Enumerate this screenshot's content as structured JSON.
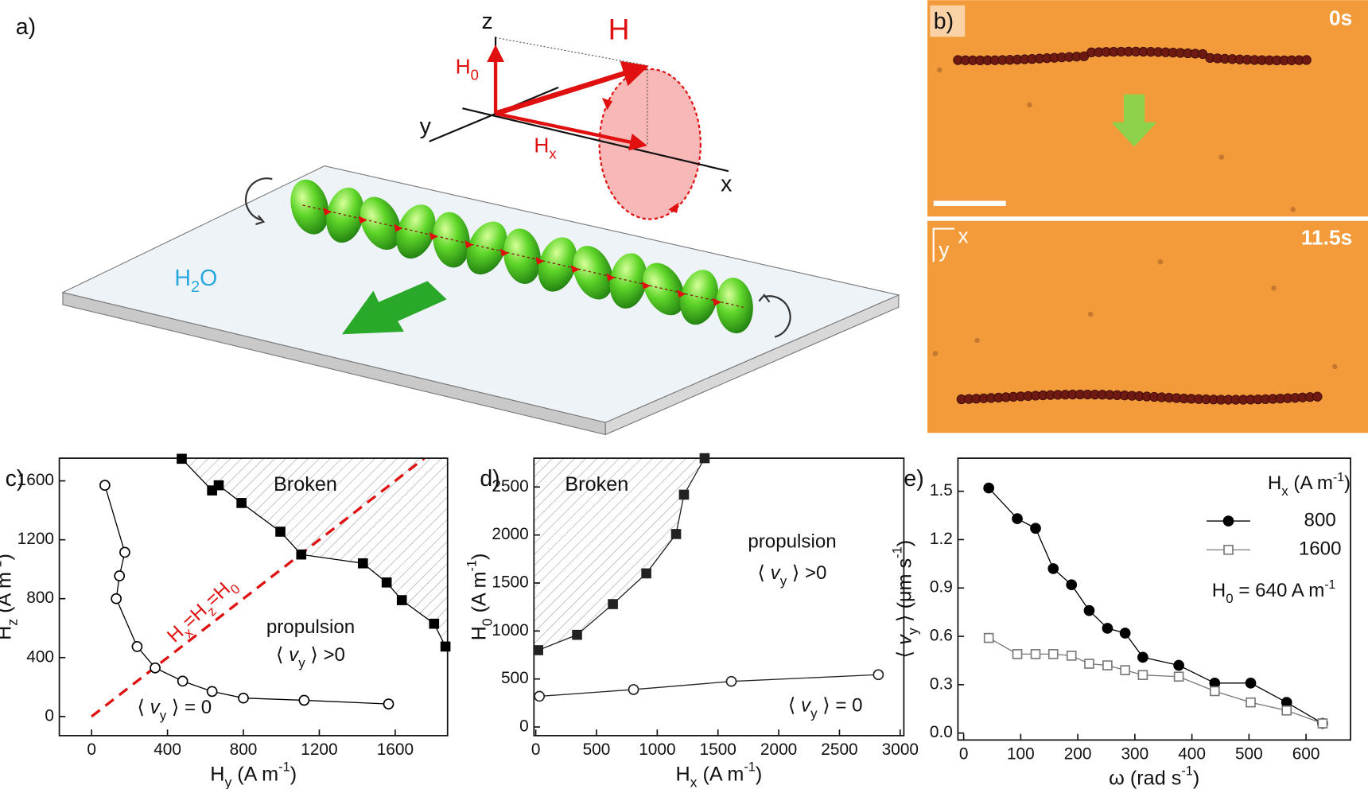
{
  "panel_a": {
    "label": "a)",
    "axis_z": "z",
    "axis_y": "y",
    "axis_x": "x",
    "field": "H",
    "h0": [
      {
        "t": "H"
      },
      {
        "t": "0",
        "sub": true
      }
    ],
    "hx": [
      {
        "t": "H"
      },
      {
        "t": "x",
        "sub": true
      }
    ],
    "water": [
      {
        "t": "H"
      },
      {
        "t": "2",
        "sub": true
      },
      {
        "t": "O"
      }
    ]
  },
  "panel_b": {
    "label": "b)",
    "time_top": "0s",
    "time_bottom": "11.5s",
    "axis_y": "y",
    "axis_x": "x"
  },
  "chart_data": [
    {
      "type": "line",
      "panel_label": "c)",
      "x_label": [
        {
          "t": "H"
        },
        {
          "t": "y",
          "sub": true
        },
        {
          "t": " (A m"
        },
        {
          "t": "-1",
          "sup": true
        },
        {
          "t": ")"
        }
      ],
      "y_label": [
        {
          "t": "H"
        },
        {
          "t": "z",
          "sub": true
        },
        {
          "t": " (A m"
        },
        {
          "t": "-1",
          "sup": true
        },
        {
          "t": ")"
        }
      ],
      "xlim": [
        -170,
        1876
      ],
      "ylim": [
        -130,
        1754
      ],
      "xticks": [
        0,
        400,
        800,
        1200,
        1600
      ],
      "yticks": [
        0,
        400,
        800,
        1200,
        1600
      ],
      "series": [
        {
          "color": "#000000",
          "marker": "circle",
          "filled": false,
          "x": [
            70,
            175,
            147,
            130,
            240,
            335,
            480,
            635,
            800,
            1120,
            1565
          ],
          "values": [
            1570,
            1115,
            955,
            800,
            475,
            330,
            240,
            170,
            125,
            110,
            85
          ]
        },
        {
          "color": "#000000",
          "marker": "square",
          "filled": true,
          "x": [
            475,
            635,
            670,
            790,
            995,
            1105,
            1430,
            1555,
            1635,
            1805,
            1865
          ],
          "values": [
            1750,
            1535,
            1570,
            1450,
            1255,
            1100,
            1040,
            910,
            790,
            630,
            475
          ]
        }
      ],
      "annotations": [
        [
          {
            "t": "Broken"
          }
        ],
        [
          {
            "t": "propulsion"
          }
        ],
        [
          {
            "t": "⟨ "
          },
          {
            "t": "v",
            "italic": true
          },
          {
            "t": "y",
            "sub": true
          },
          {
            "t": " ⟩ >0"
          }
        ],
        [
          {
            "t": "⟨ "
          },
          {
            "t": "v",
            "italic": true
          },
          {
            "t": "y",
            "sub": true
          },
          {
            "t": " ⟩ = 0"
          }
        ],
        [
          {
            "t": "H"
          },
          {
            "t": "x",
            "sub": true
          },
          {
            "t": "=H"
          },
          {
            "t": "z",
            "sub": true
          },
          {
            "t": "=H"
          },
          {
            "t": "0",
            "sub": true
          }
        ]
      ]
    },
    {
      "type": "line",
      "panel_label": "d)",
      "x_label": [
        {
          "t": "H"
        },
        {
          "t": "x",
          "sub": true
        },
        {
          "t": " (A m"
        },
        {
          "t": "-1",
          "sup": true
        },
        {
          "t": ")"
        }
      ],
      "y_label": [
        {
          "t": "H"
        },
        {
          "t": "0",
          "sub": true
        },
        {
          "t": " (A m"
        },
        {
          "t": "-1",
          "sup": true
        },
        {
          "t": ")"
        }
      ],
      "xlim": [
        -15,
        3030
      ],
      "ylim": [
        -90,
        2800
      ],
      "xticks": [
        0,
        500,
        1000,
        1500,
        2000,
        2500,
        3000
      ],
      "yticks": [
        0,
        500,
        1000,
        1500,
        2000,
        2500
      ],
      "series": [
        {
          "color": "#222222",
          "marker": "square",
          "filled": true,
          "x": [
            20,
            340,
            635,
            910,
            1155,
            1220,
            1390
          ],
          "values": [
            800,
            960,
            1280,
            1600,
            2010,
            2420,
            2800
          ]
        },
        {
          "color": "#222222",
          "marker": "circle",
          "filled": false,
          "x": [
            30,
            805,
            1610,
            2820
          ],
          "values": [
            320,
            390,
            475,
            545
          ]
        }
      ],
      "annotations": [
        [
          {
            "t": "Broken"
          }
        ],
        [
          {
            "t": "propulsion"
          }
        ],
        [
          {
            "t": "⟨ "
          },
          {
            "t": "v",
            "italic": true
          },
          {
            "t": "y",
            "sub": true
          },
          {
            "t": " ⟩ >0"
          }
        ],
        [
          {
            "t": "⟨ "
          },
          {
            "t": "v",
            "italic": true
          },
          {
            "t": "y",
            "sub": true
          },
          {
            "t": " ⟩ = 0"
          }
        ]
      ]
    },
    {
      "type": "line",
      "panel_label": "e)",
      "x_label": [
        {
          "t": "ω (rad s"
        },
        {
          "t": "-1",
          "sup": true
        },
        {
          "t": ")"
        }
      ],
      "y_label": [
        {
          "t": "⟨ "
        },
        {
          "t": "v",
          "italic": true
        },
        {
          "t": "y",
          "sub": true
        },
        {
          "t": " ⟩ (μm s"
        },
        {
          "t": "-1",
          "sup": true
        },
        {
          "t": ")"
        }
      ],
      "xlim": [
        -10,
        678
      ],
      "ylim": [
        -0.043,
        1.705
      ],
      "xticks": [
        0,
        100,
        200,
        300,
        400,
        500,
        600
      ],
      "yticks": [
        {
          "value": 0,
          "label": "0.0"
        },
        0.3,
        0.6,
        0.9,
        1.2,
        1.5
      ],
      "legend_title": [
        {
          "t": "H"
        },
        {
          "t": "x",
          "sub": true
        },
        {
          "t": " (A m"
        },
        {
          "t": "-1",
          "sup": true
        },
        {
          "t": ")"
        }
      ],
      "legend": "top-right",
      "series": [
        {
          "name": "800",
          "color": "#000000",
          "marker": "circle",
          "filled": true,
          "x": [
            44,
            94,
            126,
            157,
            189,
            220,
            252,
            283,
            314,
            377,
            440,
            503,
            566,
            629
          ],
          "values": [
            1.52,
            1.33,
            1.27,
            1.02,
            0.92,
            0.76,
            0.65,
            0.62,
            0.47,
            0.42,
            0.31,
            0.31,
            0.19,
            0.06
          ]
        },
        {
          "name": "1600",
          "color": "#777777",
          "marker": "square",
          "filled": false,
          "x": [
            44,
            94,
            126,
            157,
            189,
            220,
            252,
            283,
            314,
            377,
            440,
            503,
            566,
            629
          ],
          "values": [
            0.59,
            0.49,
            0.49,
            0.49,
            0.48,
            0.43,
            0.42,
            0.39,
            0.36,
            0.35,
            0.26,
            0.19,
            0.14,
            0.06
          ]
        }
      ],
      "annotations": [
        [
          {
            "t": "H"
          },
          {
            "t": "0",
            "sub": true
          },
          {
            "t": " = 640 A m"
          },
          {
            "t": "-1",
            "sup": true
          }
        ]
      ]
    }
  ]
}
